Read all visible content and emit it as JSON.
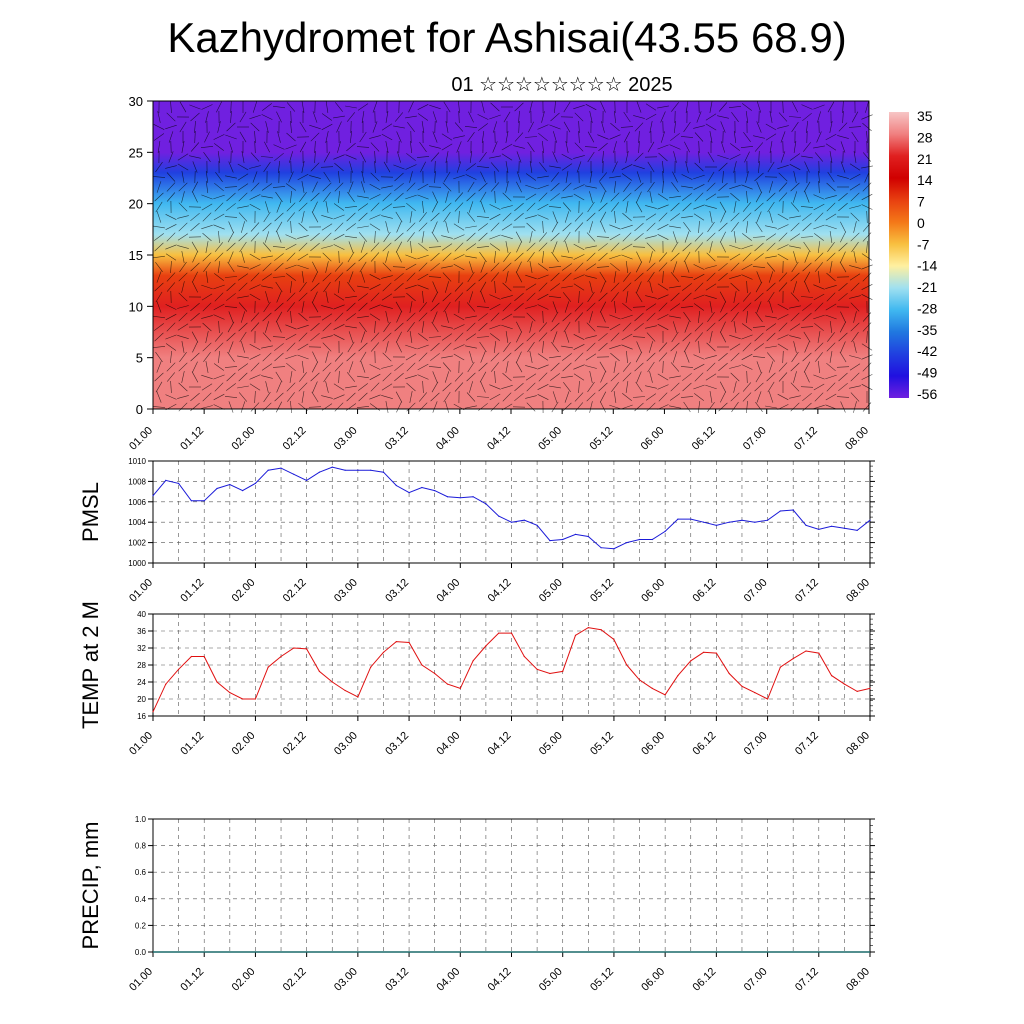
{
  "header": {
    "title": "Kazhydromet for Ashisai(43.55 68.9)",
    "subtitle": "01 ☆☆☆☆☆☆☆☆ 2025"
  },
  "chart_data": [
    {
      "type": "heatmap",
      "title": "",
      "ylim": [
        0,
        30
      ],
      "yticks": [
        0,
        5,
        10,
        15,
        20,
        25,
        30
      ],
      "xtick_labels": [
        "01.00",
        "01.12",
        "02.00",
        "02.12",
        "03.00",
        "03.12",
        "04.00",
        "04.12",
        "05.00",
        "05.12",
        "06.00",
        "06.12",
        "07.00",
        "07.12",
        "08.00"
      ],
      "colorbar": {
        "labels": [
          "35",
          "28",
          "21",
          "14",
          "7",
          "0",
          "-7",
          "-14",
          "-21",
          "-28",
          "-35",
          "-42",
          "-49",
          "-56"
        ],
        "colors": [
          "#f7c6c6",
          "#f08080",
          "#e02020",
          "#d00000",
          "#e84010",
          "#f47818",
          "#f8c040",
          "#fff0a0",
          "#a0e0f0",
          "#40b8f0",
          "#2078e0",
          "#2040e0",
          "#2010e0",
          "#7020e0"
        ]
      },
      "layers": [
        {
          "height": 0,
          "temp": 28
        },
        {
          "height": 5,
          "temp": 26
        },
        {
          "height": 10,
          "temp": 18
        },
        {
          "height": 13,
          "temp": 5
        },
        {
          "height": 15,
          "temp": -8
        },
        {
          "height": 17,
          "temp": -18
        },
        {
          "height": 20,
          "temp": -30
        },
        {
          "height": 23,
          "temp": -45
        },
        {
          "height": 25,
          "temp": -60
        },
        {
          "height": 28,
          "temp": -57
        },
        {
          "height": 30,
          "temp": -56
        }
      ],
      "grid": false
    },
    {
      "type": "line",
      "ylabel": "PMSL",
      "ylim": [
        1000,
        1010
      ],
      "yticks": [
        "1000",
        "1002",
        "1004",
        "1006",
        "1008",
        "1010"
      ],
      "xtick_labels": [
        "01.00",
        "01.12",
        "02.00",
        "02.12",
        "03.00",
        "03.12",
        "04.00",
        "04.12",
        "05.00",
        "05.12",
        "06.00",
        "06.12",
        "07.00",
        "07.12",
        "08.00"
      ],
      "color": "#1a1ad8",
      "grid": true,
      "x_hours": [
        0,
        3,
        6,
        9,
        12,
        15,
        18,
        21,
        24,
        27,
        30,
        33,
        36,
        39,
        42,
        45,
        48,
        51,
        54,
        57,
        60,
        63,
        66,
        69,
        72,
        75,
        78,
        81,
        84,
        87,
        90,
        93,
        96,
        99,
        102,
        105,
        108,
        111,
        114,
        117,
        120,
        123,
        126,
        129,
        132,
        135,
        138,
        141,
        144,
        147,
        150,
        153,
        156,
        159,
        162,
        165,
        168
      ],
      "values": [
        1006.6,
        1008.1,
        1007.8,
        1006.1,
        1006.1,
        1007.3,
        1007.7,
        1007.1,
        1007.8,
        1009.1,
        1009.3,
        1008.7,
        1008.1,
        1008.9,
        1009.4,
        1009.1,
        1009.1,
        1009.1,
        1008.9,
        1007.6,
        1006.9,
        1007.4,
        1007.1,
        1006.5,
        1006.4,
        1006.5,
        1005.8,
        1004.6,
        1004.0,
        1004.2,
        1003.7,
        1002.2,
        1002.3,
        1002.8,
        1002.6,
        1001.5,
        1001.4,
        1002.0,
        1002.3,
        1002.3,
        1003.1,
        1004.3,
        1004.3,
        1004.0,
        1003.7,
        1004.0,
        1004.2,
        1004.0,
        1004.2,
        1005.1,
        1005.2,
        1003.7,
        1003.3,
        1003.6,
        1003.4,
        1003.2,
        1004.2
      ]
    },
    {
      "type": "line",
      "ylabel": "TEMP at 2 M",
      "ylim": [
        16,
        40
      ],
      "yticks": [
        "16",
        "20",
        "24",
        "28",
        "32",
        "36",
        "40"
      ],
      "xtick_labels": [
        "01.00",
        "01.12",
        "02.00",
        "02.12",
        "03.00",
        "03.12",
        "04.00",
        "04.12",
        "05.00",
        "05.12",
        "06.00",
        "06.12",
        "07.00",
        "07.12",
        "08.00"
      ],
      "color": "#e01010",
      "grid": true,
      "x_hours": [
        0,
        3,
        6,
        9,
        12,
        15,
        18,
        21,
        24,
        27,
        30,
        33,
        36,
        39,
        42,
        45,
        48,
        51,
        54,
        57,
        60,
        63,
        66,
        69,
        72,
        75,
        78,
        81,
        84,
        87,
        90,
        93,
        96,
        99,
        102,
        105,
        108,
        111,
        114,
        117,
        120,
        123,
        126,
        129,
        132,
        135,
        138,
        141,
        144,
        147,
        150,
        153,
        156,
        159,
        162,
        165,
        168
      ],
      "values": [
        17.0,
        23.5,
        27.0,
        30.0,
        30.0,
        24.0,
        21.5,
        20.0,
        20.0,
        27.5,
        30.0,
        32.0,
        31.8,
        26.5,
        24.0,
        22.0,
        20.5,
        27.5,
        31.0,
        33.5,
        33.3,
        28.0,
        26.0,
        23.5,
        22.5,
        29.0,
        32.5,
        35.5,
        35.5,
        30.0,
        27.0,
        26.0,
        26.5,
        35.0,
        36.8,
        36.3,
        34.0,
        28.0,
        24.5,
        22.5,
        21.0,
        25.5,
        29.0,
        31.0,
        30.8,
        26.0,
        23.0,
        21.5,
        20.0,
        27.5,
        29.5,
        31.3,
        30.8,
        25.5,
        23.5,
        21.8,
        22.5
      ]
    },
    {
      "type": "bar",
      "ylabel": "PRECIP, mm",
      "ylim": [
        0,
        1.0
      ],
      "yticks": [
        "0.0",
        "0.2",
        "0.4",
        "0.6",
        "0.8",
        "1.0"
      ],
      "xtick_labels": [
        "01.00",
        "01.12",
        "02.00",
        "02.12",
        "03.00",
        "03.12",
        "04.00",
        "04.12",
        "05.00",
        "05.12",
        "06.00",
        "06.12",
        "07.00",
        "07.12",
        "08.00"
      ],
      "grid": true,
      "values": []
    }
  ]
}
